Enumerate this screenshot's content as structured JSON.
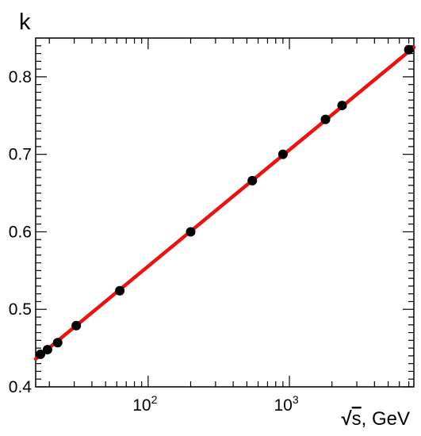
{
  "chart_data": {
    "type": "scatter",
    "ylabel": "k",
    "xlabel_radical": "√",
    "xlabel_var": "s",
    "xlabel_unit": ", GeV",
    "xscale": "log",
    "xlim": [
      16,
      7600
    ],
    "ylim": [
      0.4,
      0.85
    ],
    "yticks": [
      "0.4",
      "0.5",
      "0.6",
      "0.7",
      "0.8"
    ],
    "xticks": [
      {
        "value": 100,
        "base": "10",
        "exp": "2"
      },
      {
        "value": 1000,
        "base": "10",
        "exp": "3"
      }
    ],
    "grid": false,
    "colors": {
      "points": "#000000",
      "fit": "#ee1111",
      "axes": "#000000"
    },
    "series": [
      {
        "kind": "points",
        "x": [
          17.3,
          19.4,
          22.9,
          31.0,
          63.0,
          200.0,
          546.0,
          900.0,
          1800.0,
          2360.0,
          7000.0
        ],
        "y": [
          0.442,
          0.448,
          0.457,
          0.479,
          0.524,
          0.6,
          0.666,
          0.7,
          0.745,
          0.763,
          0.835
        ]
      },
      {
        "kind": "fit-line",
        "x": [
          16,
          7600
        ],
        "y": [
          0.436,
          0.838
        ]
      }
    ]
  }
}
